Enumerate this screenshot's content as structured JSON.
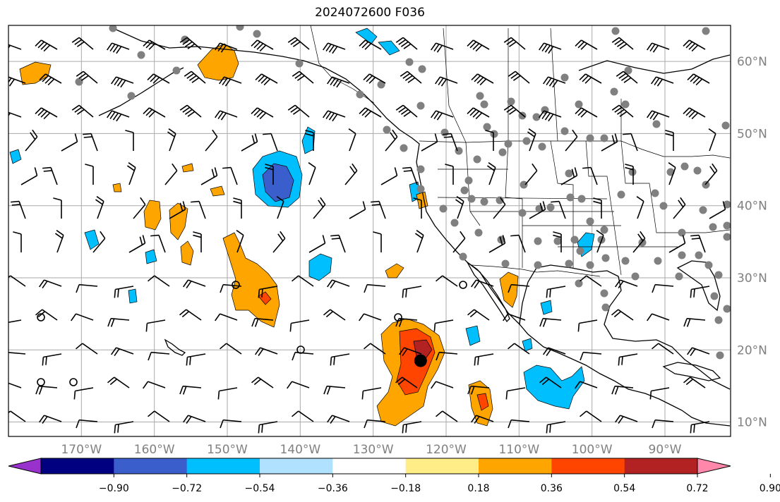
{
  "title": "2024072600 F036",
  "map": {
    "lon_range": [
      -180,
      -81
    ],
    "lat_range": [
      8,
      65
    ],
    "lon_labels": [
      {
        "lon": -170,
        "text": "170°W"
      },
      {
        "lon": -160,
        "text": "160°W"
      },
      {
        "lon": -150,
        "text": "150°W"
      },
      {
        "lon": -140,
        "text": "140°W"
      },
      {
        "lon": -130,
        "text": "130°W"
      },
      {
        "lon": -120,
        "text": "120°W"
      },
      {
        "lon": -110,
        "text": "110°W"
      },
      {
        "lon": -100,
        "text": "100°W"
      },
      {
        "lon": -90,
        "text": "90°W"
      }
    ],
    "lat_labels": [
      {
        "lat": 60,
        "text": "60°N"
      },
      {
        "lat": 50,
        "text": "50°N"
      },
      {
        "lat": 40,
        "text": "40°N"
      },
      {
        "lat": 30,
        "text": "30°N"
      },
      {
        "lat": 20,
        "text": "20°N"
      },
      {
        "lat": 10,
        "text": "10°N"
      }
    ],
    "grid": true,
    "center_marker": {
      "lon": -123.5,
      "lat": 18.5,
      "color": "#000000"
    }
  },
  "colorbar": {
    "orientation": "horizontal",
    "extend": "both",
    "colors": [
      "#9932cc",
      "#000080",
      "#3a5fcd",
      "#00bfff",
      "#b0e2ff",
      "#ffffff",
      "#ffee88",
      "#ffa500",
      "#ff4500",
      "#b22222",
      "#ff88aa"
    ],
    "tick_labels": [
      "−0.90",
      "−0.72",
      "−0.54",
      "−0.36",
      "−0.18",
      "0.18",
      "0.36",
      "0.54",
      "0.72",
      "0.90"
    ]
  },
  "colors": {
    "coast": "#000000",
    "grid": "#aaaaaa",
    "obs_dot": "#808080",
    "label": "#808080"
  }
}
